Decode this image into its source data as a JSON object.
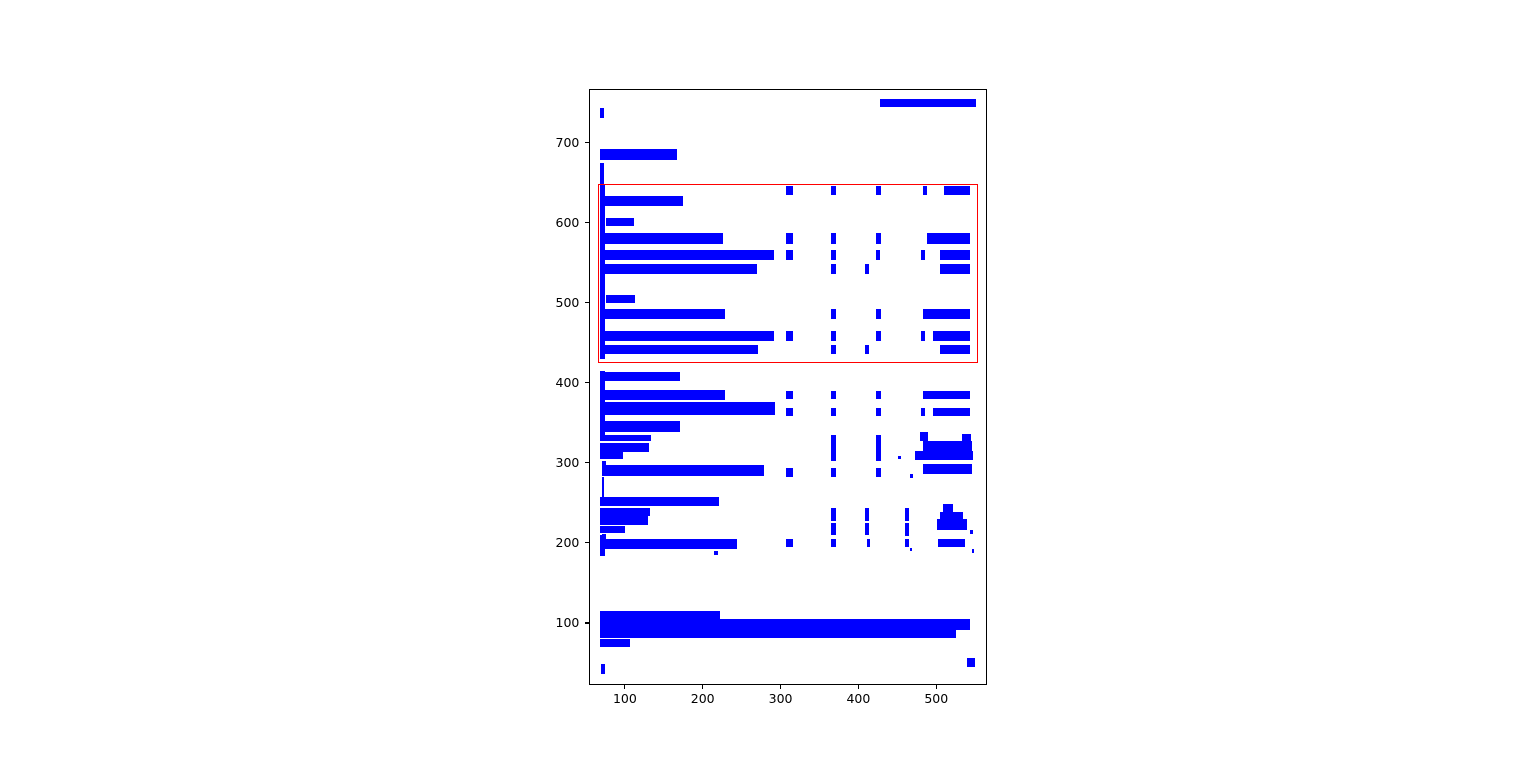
{
  "figure": {
    "background": "#ffffff",
    "box_color": "#0000ff",
    "highlight_color": "#ff0000",
    "axis_color": "#000000",
    "tick_label_color": "#000000"
  },
  "chart_data": {
    "type": "bar",
    "subtype": "document-layout-bounding-boxes",
    "title": "",
    "xlabel": "",
    "ylabel": "",
    "xlim": [
      56,
      564
    ],
    "ylim": [
      24,
      765
    ],
    "x_ticks": [
      100,
      200,
      300,
      400,
      500
    ],
    "y_ticks": [
      100,
      200,
      300,
      400,
      500,
      600,
      700
    ],
    "grid": false,
    "legend": false,
    "box_format": "[x_left, y_bottom, width, height] in data coordinates",
    "highlight_rect": [
      66,
      425,
      488,
      223
    ],
    "boxes": [
      [
        428,
        744,
        124,
        10
      ],
      [
        68,
        730,
        6,
        12.5
      ],
      [
        68,
        677.5,
        99,
        14
      ],
      [
        68,
        634,
        6,
        40
      ],
      [
        307.7,
        634,
        9,
        11.5
      ],
      [
        365.4,
        634,
        6.4,
        11.5
      ],
      [
        423,
        634,
        6.5,
        11.5
      ],
      [
        483,
        634,
        5,
        11.5
      ],
      [
        510.3,
        634,
        33.3,
        11.5
      ],
      [
        68,
        621,
        106.5,
        12
      ],
      [
        68,
        429,
        6.5,
        219
      ],
      [
        75.6,
        595.5,
        37,
        10.5
      ],
      [
        68,
        572.5,
        159,
        13.8
      ],
      [
        307.7,
        572.5,
        9,
        13.8
      ],
      [
        365.4,
        572.5,
        6.4,
        13.8
      ],
      [
        423,
        572.5,
        6.5,
        13.8
      ],
      [
        488,
        572.5,
        55.6,
        13.8
      ],
      [
        70.5,
        553,
        221.8,
        13
      ],
      [
        307.7,
        553,
        9,
        13
      ],
      [
        365.4,
        553,
        6.4,
        13
      ],
      [
        423,
        553,
        5.2,
        13
      ],
      [
        480.8,
        553,
        5.2,
        13
      ],
      [
        505.1,
        553,
        38.5,
        13
      ],
      [
        70.5,
        535,
        200,
        12.5
      ],
      [
        365.4,
        535,
        6.4,
        12.5
      ],
      [
        409,
        535,
        5.1,
        12.5
      ],
      [
        505.1,
        535,
        38.5,
        12.5
      ],
      [
        75.6,
        499.6,
        37.2,
        9.5
      ],
      [
        70.5,
        478.8,
        159,
        13.3
      ],
      [
        365.4,
        478.8,
        6.4,
        13.3
      ],
      [
        423,
        478.8,
        6.5,
        13.3
      ],
      [
        483,
        478.8,
        60.6,
        13.3
      ],
      [
        70.5,
        451.6,
        221.8,
        12.5
      ],
      [
        307.7,
        451.6,
        9,
        12.5
      ],
      [
        365.4,
        451.6,
        6.4,
        12.5
      ],
      [
        423,
        451.6,
        6.5,
        12.5
      ],
      [
        480.8,
        451.6,
        5.2,
        12.5
      ],
      [
        496.2,
        451.6,
        47.4,
        12.5
      ],
      [
        70.5,
        435,
        201.3,
        11.3
      ],
      [
        365.4,
        435,
        6.4,
        11.3
      ],
      [
        409,
        435,
        5.5,
        11.3
      ],
      [
        505.1,
        435,
        38.5,
        11.3
      ],
      [
        68,
        402,
        103,
        11.5
      ],
      [
        68,
        378.5,
        161.5,
        12.4
      ],
      [
        307.7,
        380,
        9,
        9.5
      ],
      [
        365.4,
        380,
        6.4,
        9.5
      ],
      [
        423,
        380,
        6.5,
        9.5
      ],
      [
        483,
        380,
        60.6,
        9.5
      ],
      [
        68,
        335,
        6.5,
        80
      ],
      [
        68,
        359,
        224.7,
        16.5
      ],
      [
        307.7,
        358.5,
        9,
        10
      ],
      [
        365.4,
        358.5,
        6.4,
        10
      ],
      [
        423,
        358.5,
        6.5,
        10
      ],
      [
        480.8,
        358.5,
        5.2,
        10
      ],
      [
        496.6,
        358.5,
        47,
        10
      ],
      [
        70.5,
        338,
        100.4,
        13.6
      ],
      [
        68,
        326.6,
        65.4,
        8.4
      ],
      [
        68,
        313,
        63.3,
        11.6
      ],
      [
        68,
        304,
        30.4,
        9
      ],
      [
        365.4,
        302,
        6.4,
        33
      ],
      [
        423,
        302,
        6.5,
        33
      ],
      [
        451.7,
        304.5,
        3.4,
        4.2
      ],
      [
        479.5,
        327.5,
        10.6,
        10.5
      ],
      [
        533,
        326,
        12,
        10
      ],
      [
        483.8,
        315,
        62,
        12.5
      ],
      [
        473,
        303.8,
        74.8,
        11.2
      ],
      [
        70.5,
        297.5,
        5.1,
        5
      ],
      [
        70.5,
        283,
        208,
        13.4
      ],
      [
        307.7,
        282,
        9,
        11.4
      ],
      [
        365.4,
        282,
        6.4,
        11.4
      ],
      [
        423,
        282,
        6.5,
        11.4
      ],
      [
        466.7,
        281,
        3.4,
        4.2
      ],
      [
        483.8,
        286,
        62,
        12.4
      ],
      [
        70.5,
        257.5,
        3,
        24
      ],
      [
        69,
        245.4,
        152,
        11.7
      ],
      [
        68,
        233,
        64.4,
        10.4
      ],
      [
        68,
        222.5,
        62,
        10.5
      ],
      [
        68,
        212,
        32.4,
        9.3
      ],
      [
        70.5,
        204,
        5.1,
        7
      ],
      [
        365.4,
        227,
        6.4,
        16.5
      ],
      [
        365.4,
        209,
        6.4,
        16
      ],
      [
        409,
        227,
        5.1,
        16.5
      ],
      [
        409,
        209,
        5.1,
        16
      ],
      [
        460.3,
        227,
        5.1,
        16.5
      ],
      [
        460.3,
        208,
        5.1,
        16.5
      ],
      [
        509.4,
        238.4,
        12.8,
        10.4
      ],
      [
        505.1,
        229.1,
        30,
        9.3
      ],
      [
        501.7,
        215.4,
        38.5,
        13.7
      ],
      [
        543.6,
        210.4,
        3.4,
        5
      ],
      [
        70,
        192,
        175,
        12.6
      ],
      [
        307.7,
        195,
        9,
        9
      ],
      [
        365.4,
        195,
        6.4,
        9
      ],
      [
        411.2,
        195,
        4.2,
        9
      ],
      [
        460.3,
        195,
        5.1,
        9
      ],
      [
        503,
        195,
        34,
        9
      ],
      [
        466.7,
        189,
        3,
        4.4
      ],
      [
        545.8,
        187,
        3,
        5.4
      ],
      [
        214.5,
        184,
        5.1,
        5.3
      ],
      [
        68,
        183,
        6.7,
        26
      ],
      [
        68,
        80.4,
        154,
        34.6
      ],
      [
        222,
        91.3,
        322,
        13.3
      ],
      [
        222,
        80.4,
        303.3,
        10.9
      ],
      [
        68,
        69.6,
        39,
        10
      ],
      [
        69.2,
        35.9,
        5.2,
        12.5
      ],
      [
        539.4,
        44.6,
        10.6,
        11.3
      ]
    ]
  }
}
